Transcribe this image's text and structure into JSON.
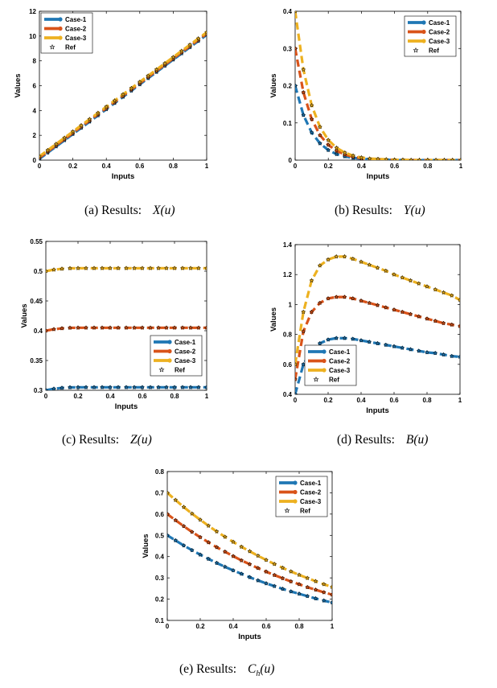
{
  "colors": {
    "case1": "#1f77b4",
    "case2": "#d95319",
    "case3": "#edb120",
    "ref": "#000000"
  },
  "chart_data": [
    {
      "type": "line",
      "id": "a",
      "caption": {
        "prefix": "(a) Results:",
        "math": "X(u)"
      },
      "xlabel": "Inputs",
      "ylabel": "Values",
      "xlim": [
        0,
        1
      ],
      "ylim": [
        0,
        12
      ],
      "xticks": [
        "0",
        "0.2",
        "0.4",
        "0.6",
        "0.8",
        "1"
      ],
      "yticks": [
        "0",
        "2",
        "4",
        "6",
        "8",
        "10",
        "12"
      ],
      "legend_position": "top-left",
      "legend": [
        "Case-1",
        "Case-2",
        "Case-3",
        "Ref"
      ],
      "x": [
        0,
        0.05,
        0.1,
        0.15,
        0.2,
        0.25,
        0.3,
        0.35,
        0.4,
        0.45,
        0.5,
        0.55,
        0.6,
        0.65,
        0.7,
        0.75,
        0.8,
        0.85,
        0.9,
        0.95,
        1
      ],
      "series": [
        {
          "name": "Case-1",
          "values": [
            0.1,
            0.6,
            1.1,
            1.6,
            2.1,
            2.6,
            3.1,
            3.6,
            4.1,
            4.6,
            5.1,
            5.6,
            6.1,
            6.6,
            7.1,
            7.6,
            8.1,
            8.6,
            9.1,
            9.6,
            10.1
          ]
        },
        {
          "name": "Case-2",
          "values": [
            0.2,
            0.7,
            1.2,
            1.7,
            2.2,
            2.7,
            3.2,
            3.7,
            4.2,
            4.7,
            5.2,
            5.7,
            6.2,
            6.7,
            7.2,
            7.7,
            8.2,
            8.7,
            9.2,
            9.7,
            10.2
          ]
        },
        {
          "name": "Case-3",
          "values": [
            0.3,
            0.8,
            1.3,
            1.8,
            2.3,
            2.8,
            3.3,
            3.8,
            4.3,
            4.8,
            5.3,
            5.8,
            6.3,
            6.8,
            7.3,
            7.8,
            8.3,
            8.8,
            9.3,
            9.8,
            10.3
          ]
        }
      ]
    },
    {
      "type": "line",
      "id": "b",
      "caption": {
        "prefix": "(b) Results:",
        "math": "Y(u)"
      },
      "xlabel": "Inputs",
      "ylabel": "Values",
      "xlim": [
        0,
        1
      ],
      "ylim": [
        0,
        0.4
      ],
      "xticks": [
        "0",
        "0.2",
        "0.4",
        "0.6",
        "0.8",
        "1"
      ],
      "yticks": [
        "0",
        "0.1",
        "0.2",
        "0.3",
        "0.4"
      ],
      "legend_position": "top-right",
      "legend": [
        "Case-1",
        "Case-2",
        "Case-3",
        "Ref"
      ],
      "x": [
        0,
        0.05,
        0.1,
        0.15,
        0.2,
        0.25,
        0.3,
        0.35,
        0.4,
        0.45,
        0.5,
        0.55,
        0.6,
        0.65,
        0.7,
        0.75,
        0.8,
        0.85,
        0.9,
        0.95,
        1
      ],
      "series": [
        {
          "name": "Case-1",
          "values": [
            0.2,
            0.121,
            0.074,
            0.045,
            0.027,
            0.016,
            0.01,
            0.006,
            0.004,
            0.002,
            0.001,
            0.001,
            0,
            0,
            0,
            0,
            0,
            0,
            0,
            0,
            0
          ]
        },
        {
          "name": "Case-2",
          "values": [
            0.3,
            0.182,
            0.11,
            0.067,
            0.041,
            0.025,
            0.015,
            0.009,
            0.005,
            0.003,
            0.002,
            0.001,
            0.001,
            0,
            0,
            0,
            0,
            0,
            0,
            0,
            0
          ]
        },
        {
          "name": "Case-3",
          "values": [
            0.4,
            0.243,
            0.147,
            0.089,
            0.054,
            0.033,
            0.02,
            0.012,
            0.007,
            0.004,
            0.003,
            0.002,
            0.001,
            0.001,
            0,
            0,
            0,
            0,
            0,
            0,
            0
          ]
        }
      ]
    },
    {
      "type": "line",
      "id": "c",
      "caption": {
        "prefix": "(c) Results:",
        "math": "Z(u)"
      },
      "xlabel": "Inputs",
      "ylabel": "Values",
      "xlim": [
        0,
        1
      ],
      "ylim": [
        0.3,
        0.55
      ],
      "xticks": [
        "0",
        "0.2",
        "0.4",
        "0.6",
        "0.8",
        "1"
      ],
      "yticks": [
        "0.3",
        "0.35",
        "0.4",
        "0.45",
        "0.5",
        "0.55"
      ],
      "legend_position": "middle-right",
      "legend": [
        "Case-1",
        "Case-2",
        "Case-3",
        "Ref"
      ],
      "x": [
        0,
        0.05,
        0.1,
        0.15,
        0.2,
        0.25,
        0.3,
        0.35,
        0.4,
        0.45,
        0.5,
        0.55,
        0.6,
        0.65,
        0.7,
        0.75,
        0.8,
        0.85,
        0.9,
        0.95,
        1
      ],
      "series": [
        {
          "name": "Case-1",
          "values": [
            0.3,
            0.3025,
            0.304,
            0.3048,
            0.305,
            0.305,
            0.305,
            0.305,
            0.305,
            0.305,
            0.305,
            0.305,
            0.305,
            0.305,
            0.305,
            0.305,
            0.305,
            0.305,
            0.305,
            0.305,
            0.305
          ]
        },
        {
          "name": "Case-2",
          "values": [
            0.4,
            0.4025,
            0.404,
            0.4048,
            0.405,
            0.405,
            0.405,
            0.405,
            0.405,
            0.405,
            0.405,
            0.405,
            0.405,
            0.405,
            0.405,
            0.405,
            0.405,
            0.405,
            0.405,
            0.405,
            0.405
          ]
        },
        {
          "name": "Case-3",
          "values": [
            0.5,
            0.5025,
            0.504,
            0.5048,
            0.505,
            0.505,
            0.505,
            0.505,
            0.505,
            0.505,
            0.505,
            0.505,
            0.505,
            0.505,
            0.505,
            0.505,
            0.505,
            0.505,
            0.505,
            0.505,
            0.505
          ]
        }
      ]
    },
    {
      "type": "line",
      "id": "d",
      "caption": {
        "prefix": "(d) Results:",
        "math": "B(u)"
      },
      "xlabel": "Inputs",
      "ylabel": "Values",
      "xlim": [
        0,
        1
      ],
      "ylim": [
        0.4,
        1.4
      ],
      "xticks": [
        "0",
        "0.2",
        "0.4",
        "0.6",
        "0.8",
        "1"
      ],
      "yticks": [
        "0.4",
        "0.6",
        "0.8",
        "1",
        "1.2",
        "1.4"
      ],
      "legend_position": "bottom-left",
      "legend": [
        "Case-1",
        "Case-2",
        "Case-3",
        "Ref"
      ],
      "x": [
        0,
        0.05,
        0.1,
        0.15,
        0.2,
        0.25,
        0.3,
        0.35,
        0.4,
        0.45,
        0.5,
        0.55,
        0.6,
        0.65,
        0.7,
        0.75,
        0.8,
        0.85,
        0.9,
        0.95,
        1
      ],
      "series": [
        {
          "name": "Case-1",
          "values": [
            0.4,
            0.6,
            0.69,
            0.74,
            0.765,
            0.775,
            0.775,
            0.77,
            0.76,
            0.75,
            0.74,
            0.73,
            0.72,
            0.71,
            0.7,
            0.69,
            0.68,
            0.675,
            0.665,
            0.655,
            0.65
          ]
        },
        {
          "name": "Case-2",
          "values": [
            0.5,
            0.82,
            0.95,
            1.01,
            1.04,
            1.05,
            1.05,
            1.04,
            1.025,
            1.01,
            0.995,
            0.98,
            0.965,
            0.95,
            0.935,
            0.92,
            0.905,
            0.89,
            0.875,
            0.865,
            0.855
          ]
        },
        {
          "name": "Case-3",
          "values": [
            0.6,
            0.95,
            1.16,
            1.26,
            1.3,
            1.32,
            1.32,
            1.305,
            1.285,
            1.265,
            1.245,
            1.225,
            1.2,
            1.18,
            1.16,
            1.14,
            1.12,
            1.1,
            1.08,
            1.06,
            1.03
          ]
        }
      ]
    },
    {
      "type": "line",
      "id": "e",
      "caption": {
        "prefix": "(e) Results:",
        "math": "C",
        "math_sub": "h",
        "math_suffix": "(u)"
      },
      "xlabel": "Inputs",
      "ylabel": "Values",
      "xlim": [
        0,
        1
      ],
      "ylim": [
        0.1,
        0.8
      ],
      "xticks": [
        "0",
        "0.2",
        "0.4",
        "0.6",
        "0.8",
        "1"
      ],
      "yticks": [
        "0.1",
        "0.2",
        "0.3",
        "0.4",
        "0.5",
        "0.6",
        "0.7",
        "0.8"
      ],
      "legend_position": "top-right",
      "legend": [
        "Case-1",
        "Case-2",
        "Case-3",
        "Ref"
      ],
      "x": [
        0,
        0.05,
        0.1,
        0.15,
        0.2,
        0.25,
        0.3,
        0.35,
        0.4,
        0.45,
        0.5,
        0.55,
        0.6,
        0.65,
        0.7,
        0.75,
        0.8,
        0.85,
        0.9,
        0.95,
        1
      ],
      "series": [
        {
          "name": "Case-1",
          "values": [
            0.5,
            0.476,
            0.452,
            0.43,
            0.409,
            0.389,
            0.37,
            0.352,
            0.335,
            0.319,
            0.303,
            0.288,
            0.274,
            0.261,
            0.248,
            0.236,
            0.225,
            0.214,
            0.203,
            0.193,
            0.184
          ]
        },
        {
          "name": "Case-2",
          "values": [
            0.6,
            0.571,
            0.543,
            0.516,
            0.491,
            0.467,
            0.444,
            0.423,
            0.402,
            0.382,
            0.364,
            0.346,
            0.329,
            0.313,
            0.298,
            0.283,
            0.27,
            0.256,
            0.244,
            0.232,
            0.221
          ]
        },
        {
          "name": "Case-3",
          "values": [
            0.7,
            0.666,
            0.633,
            0.602,
            0.573,
            0.545,
            0.518,
            0.493,
            0.469,
            0.446,
            0.425,
            0.404,
            0.384,
            0.365,
            0.347,
            0.33,
            0.314,
            0.299,
            0.284,
            0.27,
            0.257
          ]
        }
      ]
    }
  ]
}
